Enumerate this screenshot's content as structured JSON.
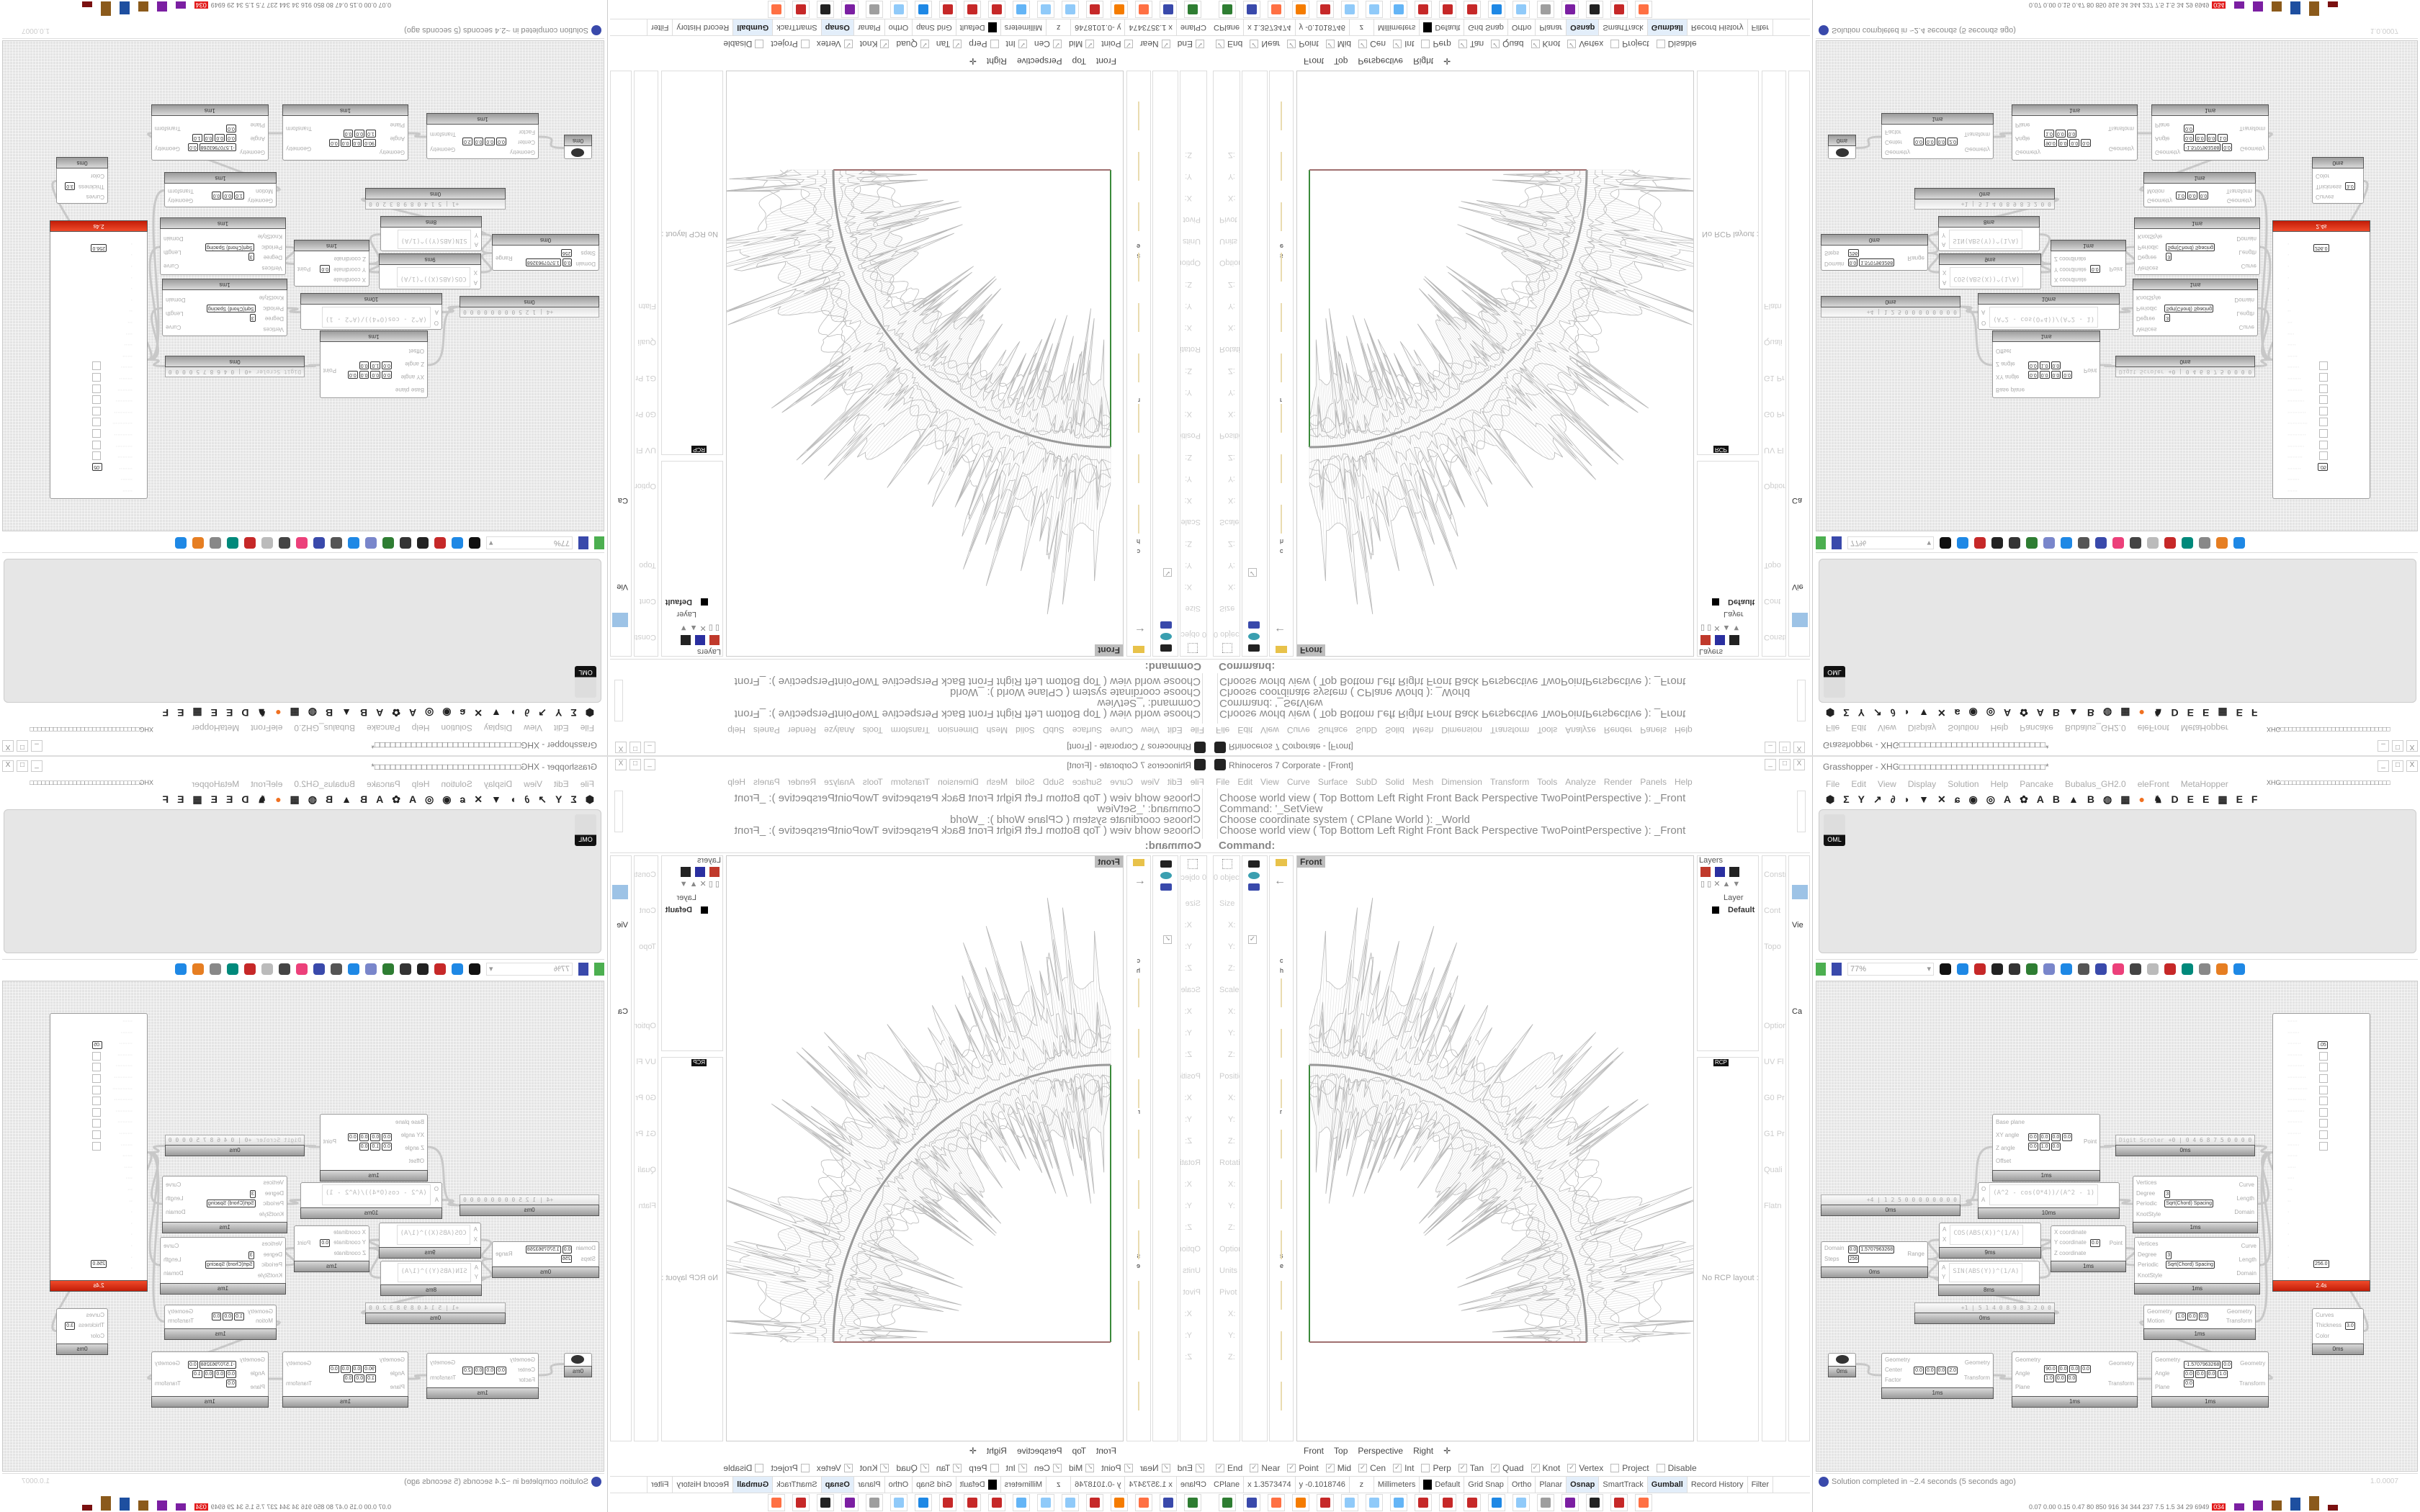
{
  "rhino": {
    "title": "Rhinoceros 7 Corporate - [Front]",
    "menu": [
      "File",
      "Edit",
      "View",
      "Curve",
      "Surface",
      "SubD",
      "Solid",
      "Mesh",
      "Dimension",
      "Transform",
      "Tools",
      "Analyze",
      "Render",
      "Panels",
      "Help"
    ],
    "history": [
      "Choose world view ( Top  Bottom  Left  Right  Front  Back  Perspective  TwoPointPerspective ): _Front",
      "Command: '_SetView",
      "Choose coordinate system ( CPlane  World ): _World",
      "Choose world view ( Top  Bottom  Left  Right  Front  Back  Perspective  TwoPointPerspective ): _Front"
    ],
    "command_prompt": "Command:",
    "properties": {
      "count": "0 objects",
      "rows": [
        "Size",
        "X:",
        "Y:",
        "Z:",
        "Scale",
        "X:",
        "Y:",
        "Z:",
        "Position",
        "X:",
        "Y:",
        "Z:",
        "Rotation",
        "X:",
        "Y:",
        "Z:",
        "Options",
        "Units",
        "Pivot",
        "X:",
        "Y:",
        "Z:"
      ]
    },
    "side_fragments": [
      "c",
      "h",
      "r",
      "s",
      "e"
    ],
    "viewport_label": "Front",
    "viewport_tabs": [
      "Front",
      "Top",
      "Perspective",
      "Right"
    ],
    "layers": {
      "title": "Layers",
      "column": "Layer",
      "rows": [
        {
          "name": "Default",
          "color": "#000000"
        }
      ]
    },
    "rcp": {
      "tab": "RCP",
      "empty": "No RCP layout ::"
    },
    "right_strip": [
      "Constra",
      "Cont",
      "Topo",
      "Options",
      "UV Fl",
      "G0 Pr",
      "G1 Pr",
      "Quali",
      "Flatn"
    ],
    "display_strip": [
      "Vie",
      "Ca"
    ],
    "osnaps": [
      {
        "label": "End",
        "checked": true
      },
      {
        "label": "Near",
        "checked": true
      },
      {
        "label": "Point",
        "checked": true
      },
      {
        "label": "Mid",
        "checked": true
      },
      {
        "label": "Cen",
        "checked": true
      },
      {
        "label": "Int",
        "checked": true
      },
      {
        "label": "Perp",
        "checked": false
      },
      {
        "label": "Tan",
        "checked": true
      },
      {
        "label": "Quad",
        "checked": true
      },
      {
        "label": "Knot",
        "checked": true
      },
      {
        "label": "Vertex",
        "checked": true
      },
      {
        "label": "Project",
        "checked": false
      },
      {
        "label": "Disable",
        "checked": false
      }
    ],
    "status": {
      "cplane": "CPlane",
      "x": "x 1.3573474",
      "y": "y -0.1018746",
      "z": "z",
      "units": "Millimeters",
      "layer": "Default",
      "layer_color": "#000000",
      "toggles": [
        {
          "label": "Grid Snap",
          "active": false
        },
        {
          "label": "Ortho",
          "active": false
        },
        {
          "label": "Planar",
          "active": false
        },
        {
          "label": "Osnap",
          "active": true
        },
        {
          "label": "SmartTrack",
          "active": false
        },
        {
          "label": "Gumball",
          "active": true
        },
        {
          "label": "Record History",
          "active": false
        },
        {
          "label": "Filter",
          "active": false
        }
      ]
    },
    "taskbar_icons": [
      "#2e7d32",
      "#3949ab",
      "#ff7043",
      "#f57c00",
      "#c62828",
      "#90caf9",
      "#90caf9",
      "#64b5f6",
      "#c62828",
      "#c62828",
      "#c62828",
      "#1e88e5",
      "#90caf9",
      "#9e9e9e",
      "#7b1fa2",
      "#212121",
      "#c62828",
      "#ff7043"
    ],
    "axis_colors": {
      "y": "#3a8a3a",
      "x": "#a07070"
    }
  },
  "grasshopper": {
    "title": "Grasshopper - XHG□□□□□□□□□□□□□□□□□□□□□□□□□□□□*",
    "menu": [
      "File",
      "Edit",
      "View",
      "Display",
      "Solution",
      "Help",
      "Pancake",
      "Bubalus_GH2.0",
      "eleFront",
      "MetaHopper"
    ],
    "document_name": "XHG□□□□□□□□□□□□□□□□□□□□□□□□□□□□",
    "tab_icons": [
      "⬢",
      "Σ",
      "Y",
      "↗",
      "∂",
      "◗",
      "▼",
      "✕",
      "ɕ",
      "◉",
      "◎",
      "A",
      "✿",
      "A",
      "B",
      "▲",
      "B",
      "◍",
      "▦",
      "●",
      "♞",
      "D",
      "E",
      "E",
      "▦",
      "E",
      "F"
    ],
    "tab_thumbnail": "OML",
    "zoom": "77%",
    "components": [
      {
        "kind": "comp",
        "inputs": [
          "Base plane",
          "XY angle",
          "Z angle",
          "Offset"
        ],
        "outputs": [
          "Point"
        ],
        "chips": [
          "0.0",
          "0.0",
          "0.0",
          "0.0",
          "0.0",
          "1.0",
          "0.0"
        ],
        "time": "1ms"
      },
      {
        "kind": "slider",
        "label": "Digit Scroler",
        "value": "+0 | 0 4 6 8 7 5 0 0 0 0 0",
        "time": "0ms"
      },
      {
        "kind": "slider",
        "label": "",
        "value": "+4 | 1 2 5 0 0 0 0 0 0 0 0",
        "time": "0ms"
      },
      {
        "kind": "expr",
        "inputs": [
          "O",
          "A"
        ],
        "expr": "(A^2 - cos(O*4))/(A^2 - 1)",
        "time": "10ms"
      },
      {
        "kind": "comp",
        "inputs": [
          "Vertices",
          "Degree",
          "Periodic",
          "KnotStyle"
        ],
        "outputs": [
          "Curve",
          "Length",
          "Domain"
        ],
        "chips": [
          "3",
          "Sqrt(Chord) Spacing"
        ],
        "time": "1ms"
      },
      {
        "kind": "comp",
        "inputs": [
          "Domain",
          "Steps"
        ],
        "outputs": [
          "Range"
        ],
        "chips": [
          "0.0",
          "1.5707963268",
          "256"
        ],
        "time": "0ms"
      },
      {
        "kind": "expr",
        "inputs": [
          "A",
          "X"
        ],
        "expr": "COS(ABS(X))^(1/A)",
        "time": "9ms"
      },
      {
        "kind": "expr",
        "inputs": [
          "A",
          "Y"
        ],
        "expr": "SIN(ABS(Y))^(1/A)",
        "time": "8ms"
      },
      {
        "kind": "comp",
        "inputs": [
          "X coordinate",
          "Y coordinate",
          "Z coordinate"
        ],
        "outputs": [
          "Point"
        ],
        "chips": [
          "0.0"
        ],
        "time": "1ms"
      },
      {
        "kind": "comp",
        "inputs": [
          "Vertices",
          "Degree",
          "Periodic",
          "KnotStyle"
        ],
        "outputs": [
          "Curve",
          "Length",
          "Domain"
        ],
        "chips": [
          "3",
          "Sqrt(Chord) Spacing"
        ],
        "time": "1ms"
      },
      {
        "kind": "slider",
        "label": "",
        "value": "+1 | 5 1 4 0 8 9 8 3 2 0 0",
        "time": "0ms"
      },
      {
        "kind": "comp",
        "inputs": [
          "Geometry",
          "Motion"
        ],
        "outputs": [
          "Geometry",
          "Transform"
        ],
        "chips": [
          "1.0",
          "0.0",
          "0.0"
        ],
        "time": "1ms"
      },
      {
        "kind": "comp",
        "inputs": [
          "Curves",
          "Thickness",
          "Color"
        ],
        "outputs": [],
        "chips": [
          "3.0"
        ],
        "time": "0ms"
      },
      {
        "kind": "param",
        "inputs": [],
        "outputs": [],
        "chips": [],
        "time": "0ms"
      },
      {
        "kind": "comp",
        "inputs": [
          "Geometry",
          "Center",
          "Factor"
        ],
        "outputs": [
          "Geometry",
          "Transform"
        ],
        "chips": [
          "0.0",
          "0.0",
          "0.0",
          "2.0"
        ],
        "time": "1ms"
      },
      {
        "kind": "comp",
        "inputs": [
          "Geometry",
          "Angle",
          "Plane"
        ],
        "outputs": [
          "Geometry",
          "Transform"
        ],
        "chips": [
          "90.0",
          "0.0",
          "0.0",
          "0.0",
          "1.0",
          "0.0",
          "0.0"
        ],
        "time": "1ms"
      },
      {
        "kind": "comp",
        "inputs": [
          "Geometry",
          "Angle",
          "Plane"
        ],
        "outputs": [
          "Geometry",
          "Transform"
        ],
        "chips": [
          "-1.5707963268",
          "0.0",
          "0.0",
          "0.0",
          "0.0",
          "1.0",
          "0.0"
        ],
        "time": "1ms"
      }
    ],
    "gene_panel": {
      "time": "2.4s",
      "values": [
        ".05",
        "256.0"
      ]
    },
    "status": "Solution completed in ~2.4 seconds (5 seconds ago)",
    "version": "1.0.0007",
    "perf_numbers": "0.07 0.00 0.15 0.47  80  850  916  34  344  237  7.5  1.5  34  29  6949",
    "perf_badge": "034"
  }
}
